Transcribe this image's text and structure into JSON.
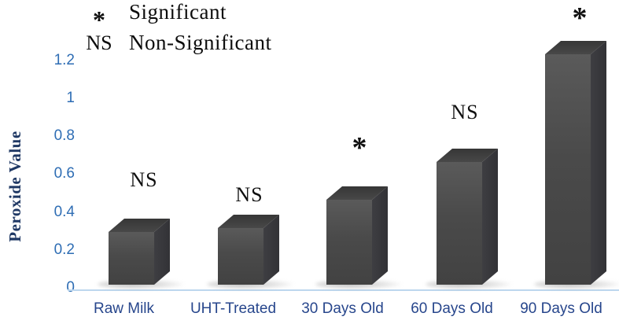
{
  "chart_data": {
    "type": "bar",
    "style": "3d-column",
    "title": "",
    "xlabel": "",
    "ylabel": "Peroxide Value",
    "categories": [
      "Raw Milk",
      "UHT-Treated",
      "30 Days Old",
      "60 Days Old",
      "90 Days Old"
    ],
    "values": [
      0.28,
      0.3,
      0.45,
      0.65,
      1.22
    ],
    "significance": [
      "NS",
      "NS",
      "*",
      "NS",
      "*"
    ],
    "yticks": [
      0,
      0.2,
      0.4,
      0.6,
      0.8,
      1,
      1.2
    ],
    "ylim": [
      0,
      1.3
    ],
    "grid": "off",
    "legend_position": "top-left",
    "colors": {
      "bar": "#4a4a4a",
      "axis_line": "#bdd7ee",
      "y_tick_label": "#2e6db4",
      "x_category_label": "#27468c",
      "y_axis_title": "#1f3864",
      "annotation_text": "#101010"
    }
  },
  "legend": {
    "items": [
      {
        "symbol": "*",
        "label": "Significant"
      },
      {
        "symbol": "NS",
        "label": "Non-Significant"
      }
    ]
  }
}
